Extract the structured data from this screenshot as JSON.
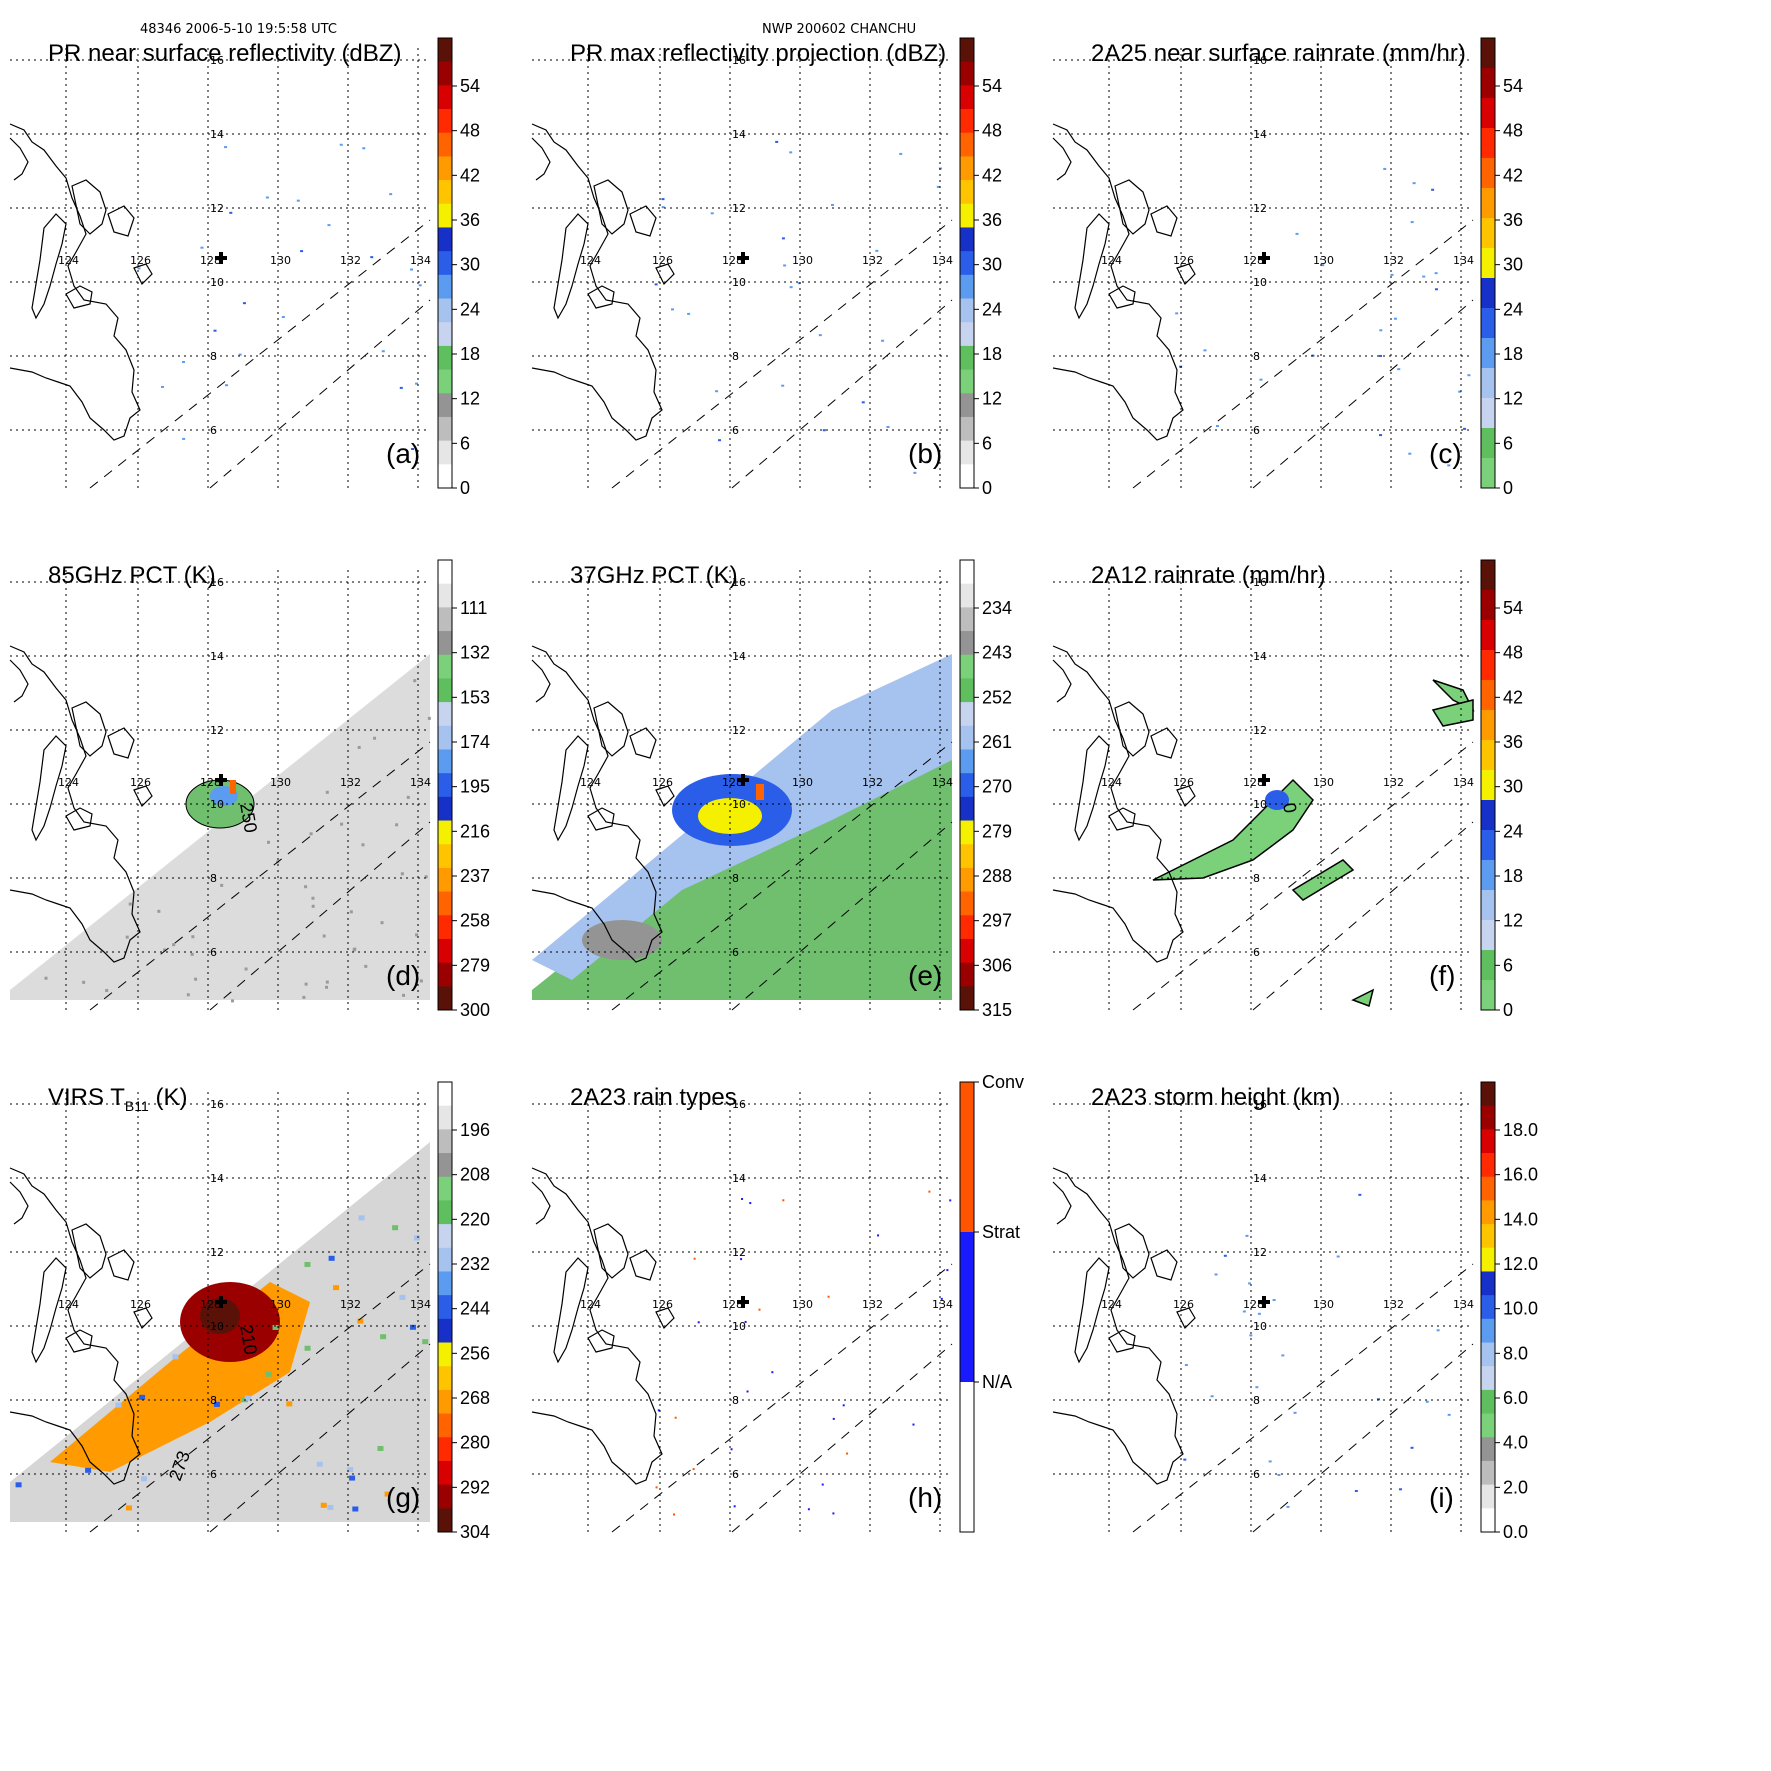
{
  "header": {
    "left": "48346 2006-5-10 19:5:58 UTC",
    "center": "NWP 200602 CHANCHU"
  },
  "map": {
    "lon_labels": [
      "124",
      "126",
      "128",
      "130",
      "132",
      "134"
    ],
    "lat_labels": [
      "16",
      "14",
      "12",
      "10",
      "8",
      "6"
    ]
  },
  "colors": {
    "reflectivity": [
      "#ffffff",
      "#e6e6e6",
      "#bdbdbd",
      "#949494",
      "#7ad17a",
      "#5fbf5f",
      "#c7d4ef",
      "#a6c2ee",
      "#5c9cf0",
      "#2a5ee8",
      "#1630c8",
      "#f5f000",
      "#ffc400",
      "#ff9a00",
      "#ff6400",
      "#ff2a00",
      "#d80000",
      "#9a0000",
      "#5a1208"
    ],
    "rain_rate": [
      "#7ad17a",
      "#5fbf5f",
      "#c7d4ef",
      "#a6c2ee",
      "#5c9cf0",
      "#2a5ee8",
      "#1630c8",
      "#f5f000",
      "#ffc400",
      "#ff9a00",
      "#ff6400",
      "#ff2a00",
      "#d80000",
      "#9a0000",
      "#5a1208"
    ],
    "pct": [
      "#5a1208",
      "#9a0000",
      "#d80000",
      "#ff2a00",
      "#ff6400",
      "#ff9a00",
      "#ffc400",
      "#f5f000",
      "#1630c8",
      "#2a5ee8",
      "#5c9cf0",
      "#a6c2ee",
      "#c7d4ef",
      "#5fbf5f",
      "#7ad17a",
      "#949494",
      "#bdbdbd",
      "#e6e6e6",
      "#ffffff"
    ],
    "rain_types": [
      "#ffffff",
      "#1a1aff",
      "#ff5500"
    ]
  },
  "panels": [
    {
      "id": "a",
      "title": "PR near surface reflectivity (dBZ)",
      "label": "(a)",
      "ticks": [
        "54",
        "48",
        "42",
        "36",
        "30",
        "24",
        "18",
        "12",
        "6",
        "0"
      ],
      "scale": "reflectivity"
    },
    {
      "id": "b",
      "title": "PR max reflectivity projection (dBZ)",
      "label": "(b)",
      "ticks": [
        "54",
        "48",
        "42",
        "36",
        "30",
        "24",
        "18",
        "12",
        "6",
        "0"
      ],
      "scale": "reflectivity"
    },
    {
      "id": "c",
      "title": "2A25 near surface rainrate (mm/hr)",
      "label": "(c)",
      "ticks": [
        "54",
        "48",
        "42",
        "36",
        "30",
        "24",
        "18",
        "12",
        "6",
        "0"
      ],
      "scale": "rain_rate"
    },
    {
      "id": "d",
      "title": "85GHz PCT (K)",
      "label": "(d)",
      "ticks": [
        "111",
        "132",
        "153",
        "174",
        "195",
        "216",
        "237",
        "258",
        "279",
        "300"
      ],
      "scale": "pct",
      "contour": "250"
    },
    {
      "id": "e",
      "title": "37GHz PCT (K)",
      "label": "(e)",
      "ticks": [
        "234",
        "243",
        "252",
        "261",
        "270",
        "279",
        "288",
        "297",
        "306",
        "315"
      ],
      "scale": "pct"
    },
    {
      "id": "f",
      "title": "2A12 rainrate (mm/hr)",
      "label": "(f)",
      "ticks": [
        "54",
        "48",
        "42",
        "36",
        "30",
        "24",
        "18",
        "12",
        "6",
        "0"
      ],
      "scale": "rain_rate",
      "contour": "0"
    },
    {
      "id": "g",
      "title": "VIRS T",
      "title_sub": "B11",
      "title_suffix": " (K)",
      "label": "(g)",
      "ticks": [
        "196",
        "208",
        "220",
        "232",
        "244",
        "256",
        "268",
        "280",
        "292",
        "304"
      ],
      "scale": "pct",
      "contour": "210",
      "contour2": "273"
    },
    {
      "id": "h",
      "title": "2A23 rain types",
      "label": "(h)",
      "ticks": [
        "Conv",
        "Strat",
        "N/A"
      ],
      "scale": "rain_types"
    },
    {
      "id": "i",
      "title": "2A23 storm height (km)",
      "label": "(i)",
      "ticks": [
        "18.0",
        "16.0",
        "14.0",
        "12.0",
        "10.0",
        "8.0",
        "6.0",
        "4.0",
        "2.0",
        "0.0"
      ],
      "scale": "reflectivity"
    }
  ]
}
